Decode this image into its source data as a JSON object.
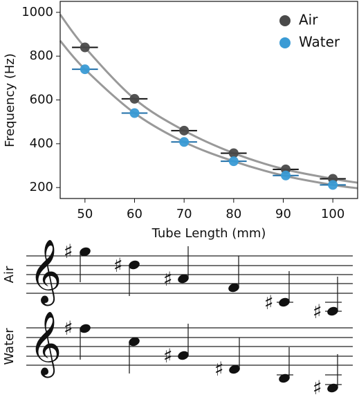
{
  "chart_data": {
    "type": "scatter",
    "xlabel": "Tube Length (mm)",
    "ylabel": "Frequency (Hz)",
    "xlim": [
      45,
      105
    ],
    "ylim": [
      150,
      1050
    ],
    "xticks": [
      50,
      60,
      70,
      80,
      90,
      100
    ],
    "yticks": [
      200,
      400,
      600,
      800,
      1000
    ],
    "legend": "upper right",
    "series": [
      {
        "name": "Air",
        "color": "#4a4a4a",
        "x": [
          50,
          60,
          70,
          80,
          90.5,
          100
        ],
        "values": [
          840,
          605,
          460,
          357,
          283,
          240
        ],
        "xerr": [
          1.5,
          1.5,
          1.5,
          1.5,
          1.5,
          1.5
        ]
      },
      {
        "name": "Water",
        "color": "#3a9bd5",
        "x": [
          50,
          60,
          70,
          80,
          90.5,
          100
        ],
        "values": [
          740,
          540,
          408,
          320,
          255,
          212
        ],
        "xerr": [
          1.5,
          1.5,
          1.5,
          1.5,
          1.5,
          1.5
        ]
      }
    ],
    "curve_color": "#999999",
    "curves": [
      {
        "x": [
          45,
          50,
          60,
          70,
          80,
          90,
          100,
          105
        ],
        "values": [
          990,
          840,
          605,
          460,
          357,
          285,
          240,
          222
        ]
      },
      {
        "x": [
          45,
          50,
          60,
          70,
          80,
          90,
          100,
          105
        ],
        "values": [
          870,
          740,
          540,
          408,
          320,
          255,
          212,
          197
        ]
      }
    ]
  },
  "staves": [
    {
      "label": "Air"
    },
    {
      "label": "Water"
    }
  ]
}
